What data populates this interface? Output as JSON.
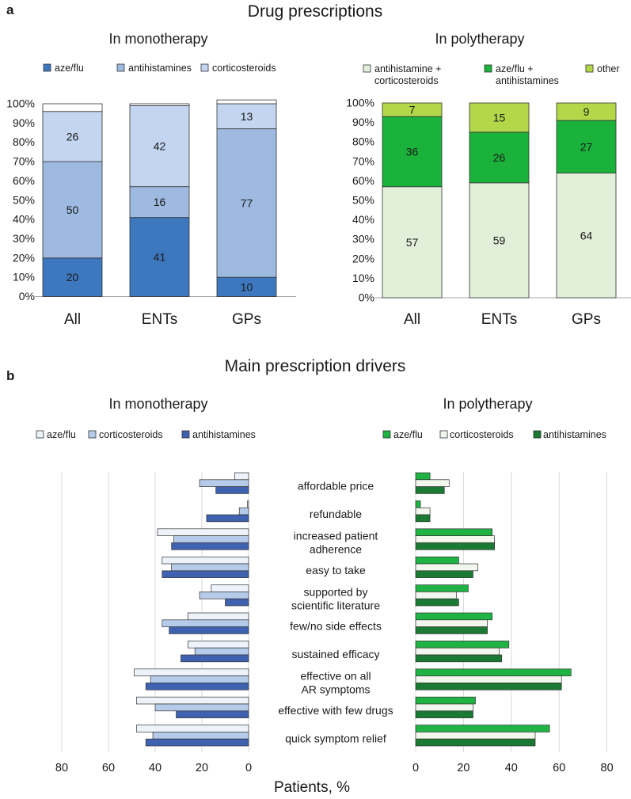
{
  "panel_a": {
    "label": "a",
    "title": "Drug prescriptions"
  },
  "panel_b": {
    "label": "b",
    "title": "Main prescription drivers",
    "xlabel": "Patients, %"
  },
  "colors": {
    "azeflu_mono": "#3d78bf",
    "antihist_mono": "#9ebae0",
    "cortico_mono": "#c3d5f0",
    "poly_ah_cs": "#e2efd9",
    "poly_azeflu_ah": "#1ab23a",
    "poly_other": "#b2d84a",
    "b_mono_azeflu": "#eef2fb",
    "b_mono_cortico": "#b5cbe9",
    "b_mono_antihist": "#3f62b0",
    "b_poly_azeflu": "#1fb344",
    "b_poly_cortico": "#f1f7ec",
    "b_poly_antihist": "#1a7a33"
  },
  "chart_data": [
    {
      "id": "a_mono",
      "type": "bar",
      "stacked": true,
      "title": "In monotherapy",
      "categories": [
        "All",
        "ENTs",
        "GPs"
      ],
      "ylim": [
        0,
        100
      ],
      "yticks": [
        "0%",
        "10%",
        "20%",
        "30%",
        "40%",
        "50%",
        "60%",
        "70%",
        "80%",
        "90%",
        "100%"
      ],
      "series": [
        {
          "name": "aze/flu",
          "values": [
            20,
            41,
            10
          ]
        },
        {
          "name": "antihistamines",
          "values": [
            50,
            16,
            77
          ]
        },
        {
          "name": "corticosteroids",
          "values": [
            26,
            42,
            13
          ]
        }
      ],
      "remainder": [
        4,
        1,
        2
      ],
      "legend": "top"
    },
    {
      "id": "a_poly",
      "type": "bar",
      "stacked": true,
      "title": "In polytherapy",
      "categories": [
        "All",
        "ENTs",
        "GPs"
      ],
      "ylim": [
        0,
        100
      ],
      "yticks": [
        "0%",
        "10%",
        "20%",
        "30%",
        "40%",
        "50%",
        "60%",
        "70%",
        "80%",
        "90%",
        "100%"
      ],
      "series": [
        {
          "name": "antihistamine + corticosteroids",
          "legend_lines": [
            "antihistamine +",
            "corticosteroids"
          ],
          "values": [
            57,
            59,
            64
          ]
        },
        {
          "name": "aze/flu + antihistamines",
          "legend_lines": [
            "aze/flu +",
            "antihistamines"
          ],
          "values": [
            36,
            26,
            27
          ]
        },
        {
          "name": "other",
          "legend_lines": [
            "other"
          ],
          "values": [
            7,
            15,
            9
          ]
        }
      ],
      "legend": "top"
    },
    {
      "id": "b_mono",
      "type": "bar",
      "orientation": "horizontal",
      "title": "In monotherapy",
      "xlim": [
        0,
        80
      ],
      "reversed": true,
      "xticks": [
        0,
        20,
        40,
        60,
        80
      ],
      "categories": [
        [
          "affordable price"
        ],
        [
          "refundable"
        ],
        [
          "increased patient",
          "adherence"
        ],
        [
          "easy to take"
        ],
        [
          "supported by",
          "scientific literature"
        ],
        [
          "few/no side effects"
        ],
        [
          "sustained efficacy"
        ],
        [
          "effective on all",
          "AR symptoms"
        ],
        [
          "effective with few drugs"
        ],
        [
          "quick symptom relief"
        ]
      ],
      "series": [
        {
          "name": "aze/flu",
          "values": [
            6,
            0.5,
            39,
            37,
            16,
            26,
            26,
            49,
            48,
            48
          ]
        },
        {
          "name": "corticosteroids",
          "values": [
            21,
            4,
            32,
            33,
            21,
            37,
            23,
            42,
            40,
            41
          ]
        },
        {
          "name": "antihistamines",
          "values": [
            14,
            18,
            33,
            37,
            10,
            34,
            29,
            44,
            31,
            44
          ]
        }
      ],
      "legend": "top"
    },
    {
      "id": "b_poly",
      "type": "bar",
      "orientation": "horizontal",
      "title": "In polytherapy",
      "xlim": [
        0,
        80
      ],
      "xticks": [
        0,
        20,
        40,
        60,
        80
      ],
      "series": [
        {
          "name": "aze/flu",
          "values": [
            6,
            2,
            32,
            18,
            22,
            32,
            39,
            65,
            25,
            56
          ]
        },
        {
          "name": "corticosteroids",
          "values": [
            14,
            6,
            33,
            26,
            17,
            30,
            35,
            61,
            24,
            50
          ]
        },
        {
          "name": "antihistamines",
          "values": [
            12,
            6,
            33,
            24,
            18,
            30,
            36,
            61,
            24,
            50
          ]
        }
      ],
      "legend": "top"
    }
  ]
}
